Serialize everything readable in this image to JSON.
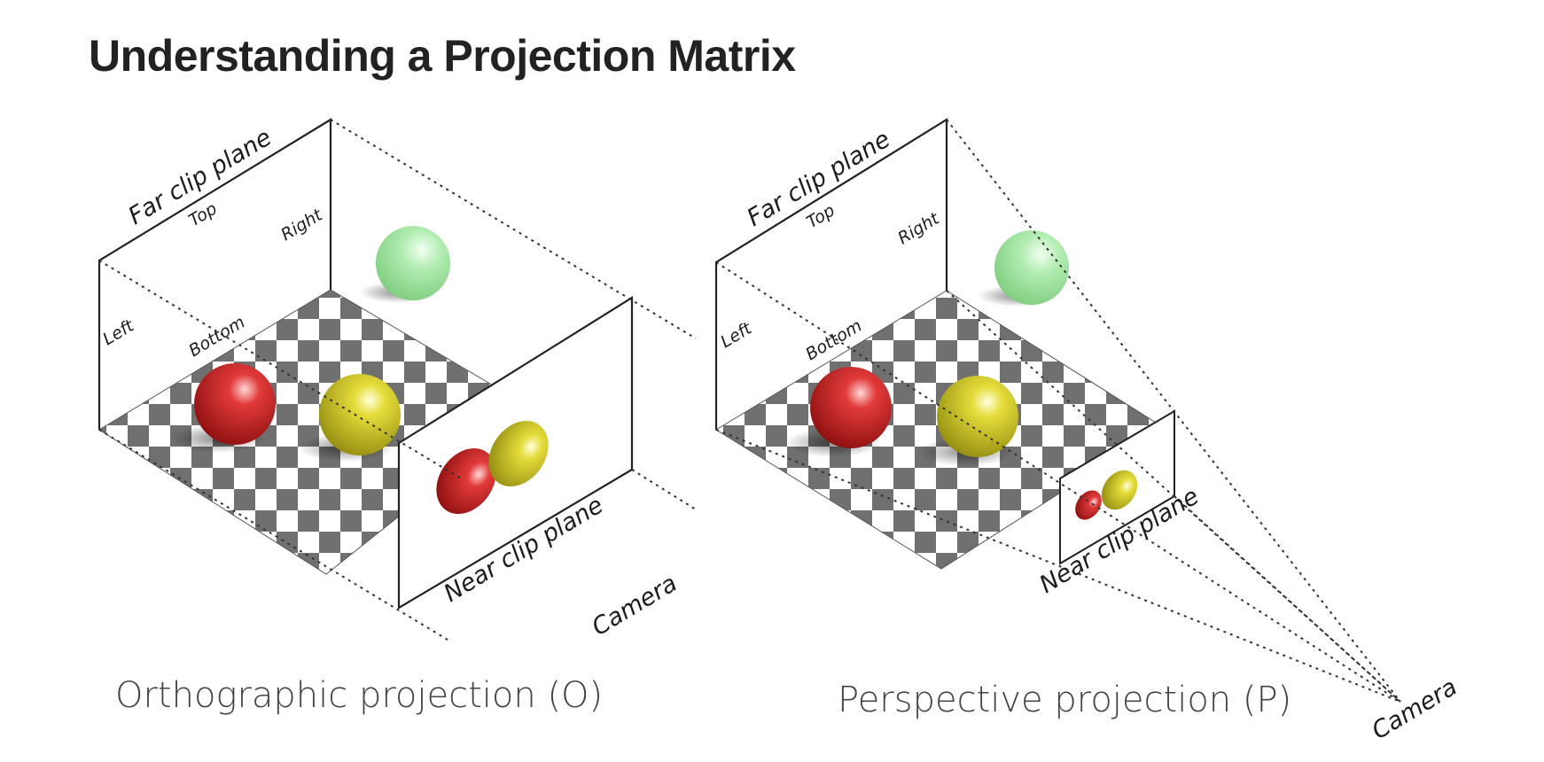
{
  "title": "Understanding a Projection Matrix",
  "orthographic": {
    "caption": "Orthographic projection (O)",
    "far_label": "Far clip plane",
    "near_label": "Near clip plane",
    "camera_label": "Camera",
    "top_label": "Top",
    "right_label": "Right",
    "left_label": "Left",
    "bottom_label": "Bottom"
  },
  "perspective": {
    "caption": "Perspective projection (P)",
    "far_label": "Far clip plane",
    "near_label": "Near clip plane",
    "camera_label": "Camera",
    "top_label": "Top",
    "right_label": "Right",
    "left_label": "Left",
    "bottom_label": "Bottom"
  },
  "colors": {
    "sphere_red": "#c82020",
    "sphere_yellow": "#d8d020",
    "sphere_green": "#9ee09e",
    "checker_dark": "#707070",
    "checker_light": "#ffffff"
  }
}
